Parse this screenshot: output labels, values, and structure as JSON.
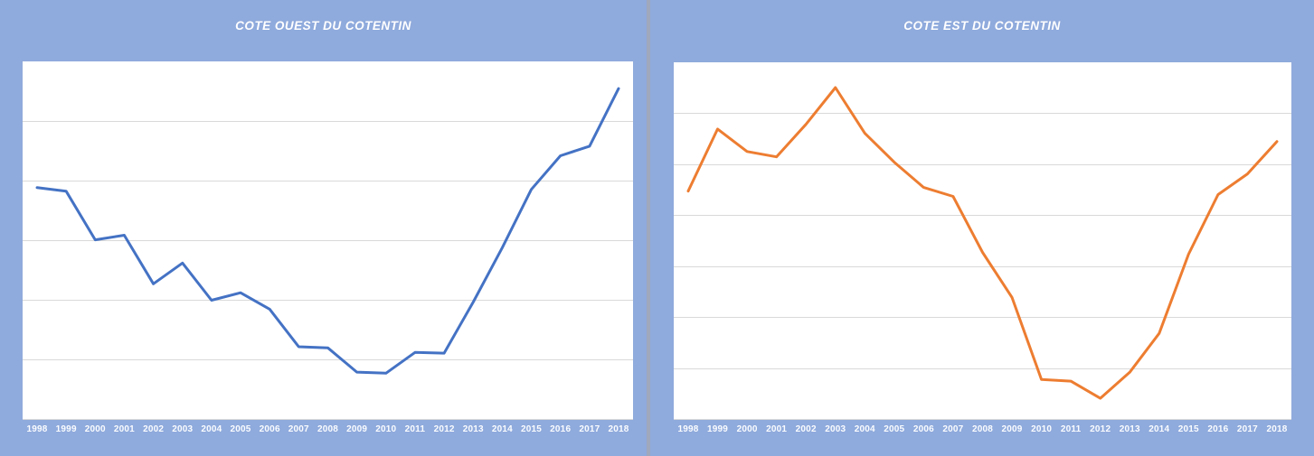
{
  "colors": {
    "panel_background": "#8FAADC",
    "panel_divider": "#9FA8BD",
    "plot_background": "#FFFFFF",
    "gridline": "#D9D9D9",
    "title_text": "#FFFFFF",
    "axis_label_text": "#FBFDFF",
    "west_line": "#4472C4",
    "east_line": "#ED7D31"
  },
  "chart_data": [
    {
      "type": "line",
      "title": "COTE OUEST DU COTENTIN",
      "x": [
        "1998",
        "1999",
        "2000",
        "2001",
        "2002",
        "2003",
        "2004",
        "2005",
        "2006",
        "2007",
        "2008",
        "2009",
        "2010",
        "2011",
        "2012",
        "2013",
        "2014",
        "2015",
        "2016",
        "2017",
        "2018"
      ],
      "series": [
        {
          "name": "COTE OUEST DU COTENTIN",
          "values": [
            64.7,
            63.7,
            50.1,
            51.4,
            37.8,
            43.6,
            33.2,
            35.3,
            30.7,
            20.2,
            19.9,
            13.1,
            12.8,
            18.6,
            18.4,
            32.7,
            47.9,
            64.2,
            73.6,
            76.3,
            92.4
          ]
        }
      ],
      "xlabel": "",
      "ylabel": "",
      "ylim": [
        0,
        100
      ],
      "values_unit": "relative height, % of plot area (y-axis has no visible labels)",
      "gridlines": {
        "horizontal": true,
        "intervals": 6
      },
      "legend": "none",
      "line_color": "#4472C4",
      "line_width": 3
    },
    {
      "type": "line",
      "title": "COTE EST DU COTENTIN",
      "x": [
        "1998",
        "1999",
        "2000",
        "2001",
        "2002",
        "2003",
        "2004",
        "2005",
        "2006",
        "2007",
        "2008",
        "2009",
        "2010",
        "2011",
        "2012",
        "2013",
        "2014",
        "2015",
        "2016",
        "2017",
        "2018"
      ],
      "series": [
        {
          "name": "COTE EST DU COTENTIN",
          "values": [
            63.9,
            81.3,
            75.0,
            73.5,
            82.6,
            92.9,
            80.1,
            72.0,
            64.9,
            62.4,
            46.7,
            34.1,
            11.1,
            10.6,
            5.8,
            13.1,
            24.0,
            46.2,
            62.9,
            68.7,
            77.8
          ]
        }
      ],
      "xlabel": "",
      "ylabel": "",
      "ylim": [
        0,
        100
      ],
      "values_unit": "relative height, % of plot area (y-axis has no visible labels)",
      "gridlines": {
        "horizontal": true,
        "intervals": 7
      },
      "legend": "none",
      "line_color": "#ED7D31",
      "line_width": 3
    }
  ]
}
